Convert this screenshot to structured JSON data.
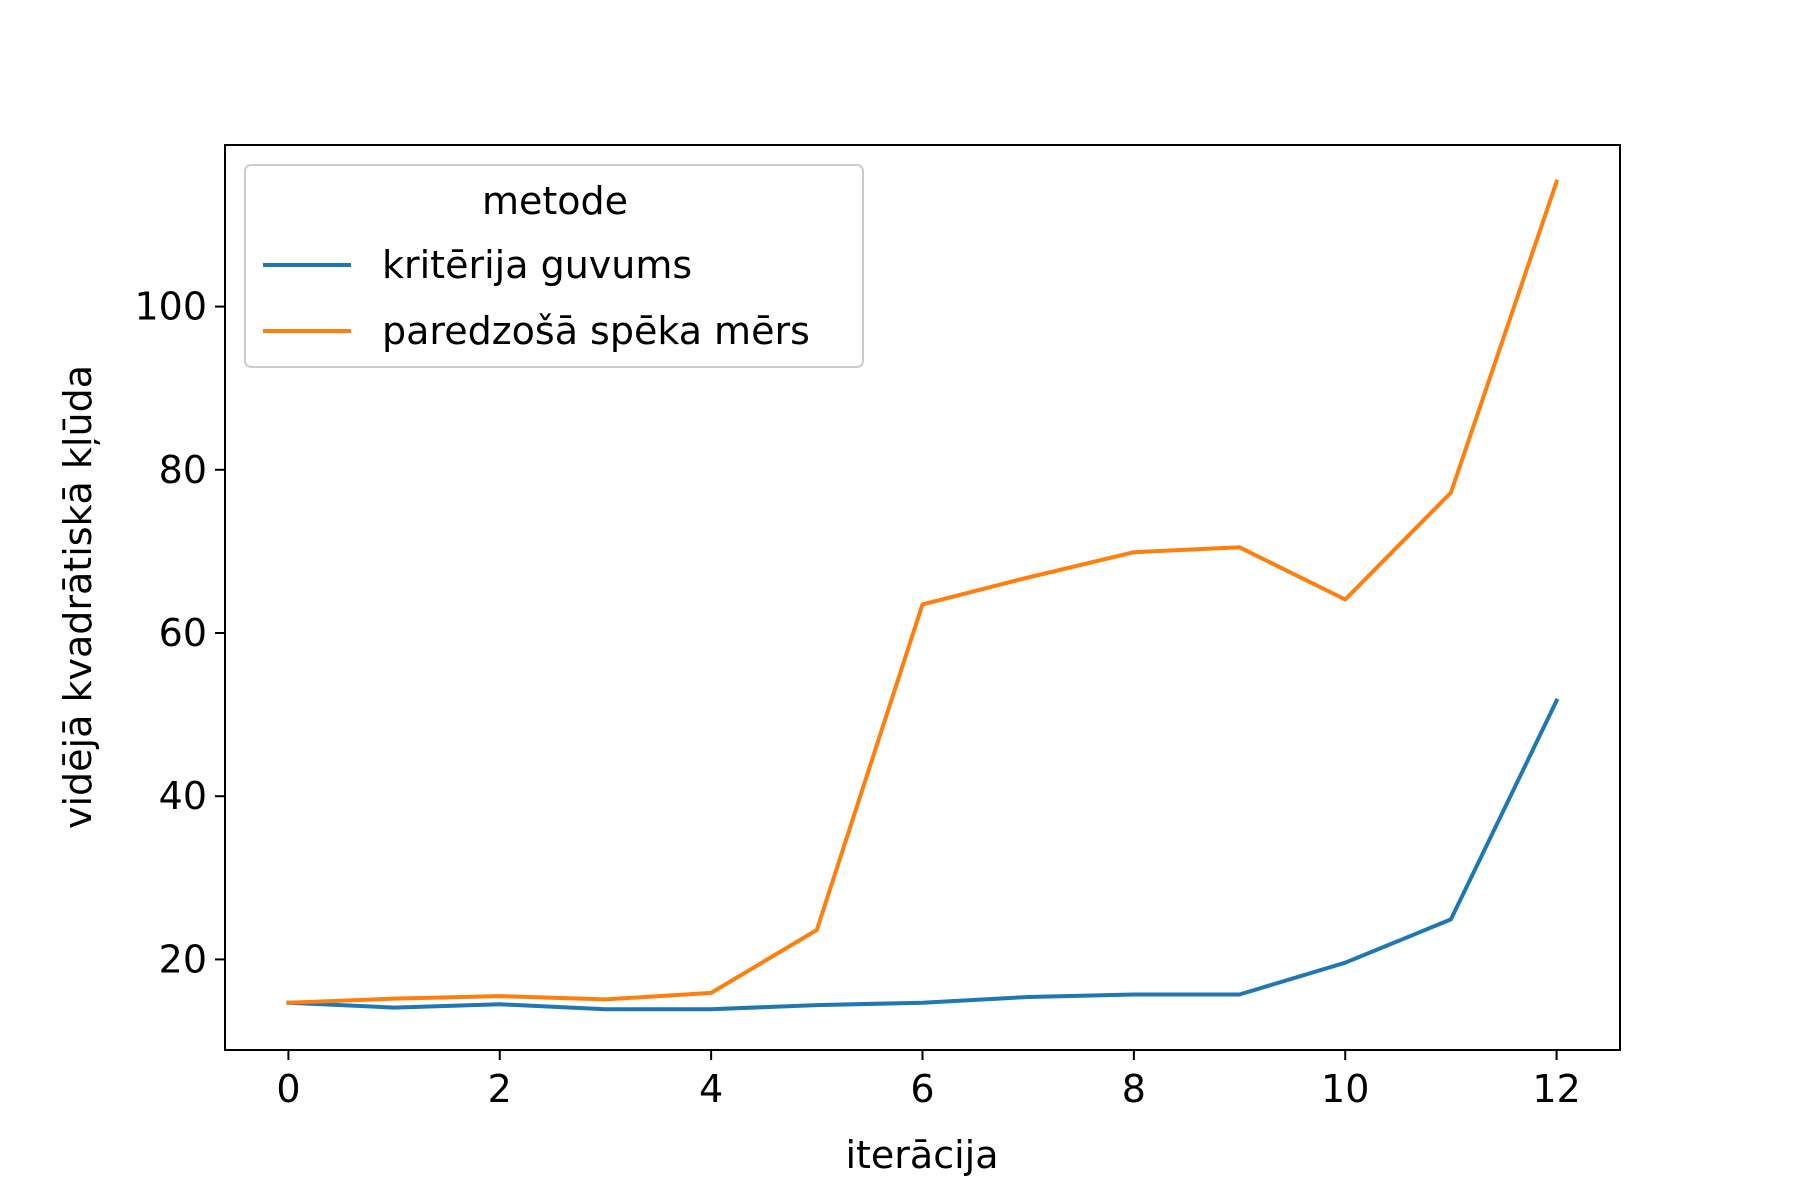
{
  "chart_data": {
    "type": "line",
    "title": "",
    "xlabel": "iterācija",
    "ylabel": "vidējā kvadrātiskā kļūda",
    "xlim": [
      -0.6,
      12.6
    ],
    "ylim": [
      8.9,
      119.8
    ],
    "xticks": [
      0,
      2,
      4,
      6,
      8,
      10,
      12
    ],
    "yticks": [
      20,
      40,
      60,
      80,
      100
    ],
    "grid": false,
    "legend": {
      "title": "metode",
      "placement": "top-left"
    },
    "x": [
      0,
      1,
      2,
      3,
      4,
      5,
      6,
      7,
      8,
      9,
      10,
      11,
      12
    ],
    "series": [
      {
        "name": "kritērija guvums",
        "color": "#1f77b4",
        "values": [
          14.7,
          14.1,
          14.5,
          13.9,
          13.9,
          14.4,
          14.7,
          15.4,
          15.7,
          15.7,
          19.6,
          24.9,
          51.7
        ]
      },
      {
        "name": "paredzošā spēka mērs",
        "color": "#ff7f0e",
        "values": [
          14.7,
          15.2,
          15.5,
          15.1,
          15.9,
          23.6,
          63.5,
          66.8,
          69.9,
          70.5,
          64.1,
          77.2,
          115.3
        ]
      }
    ]
  }
}
